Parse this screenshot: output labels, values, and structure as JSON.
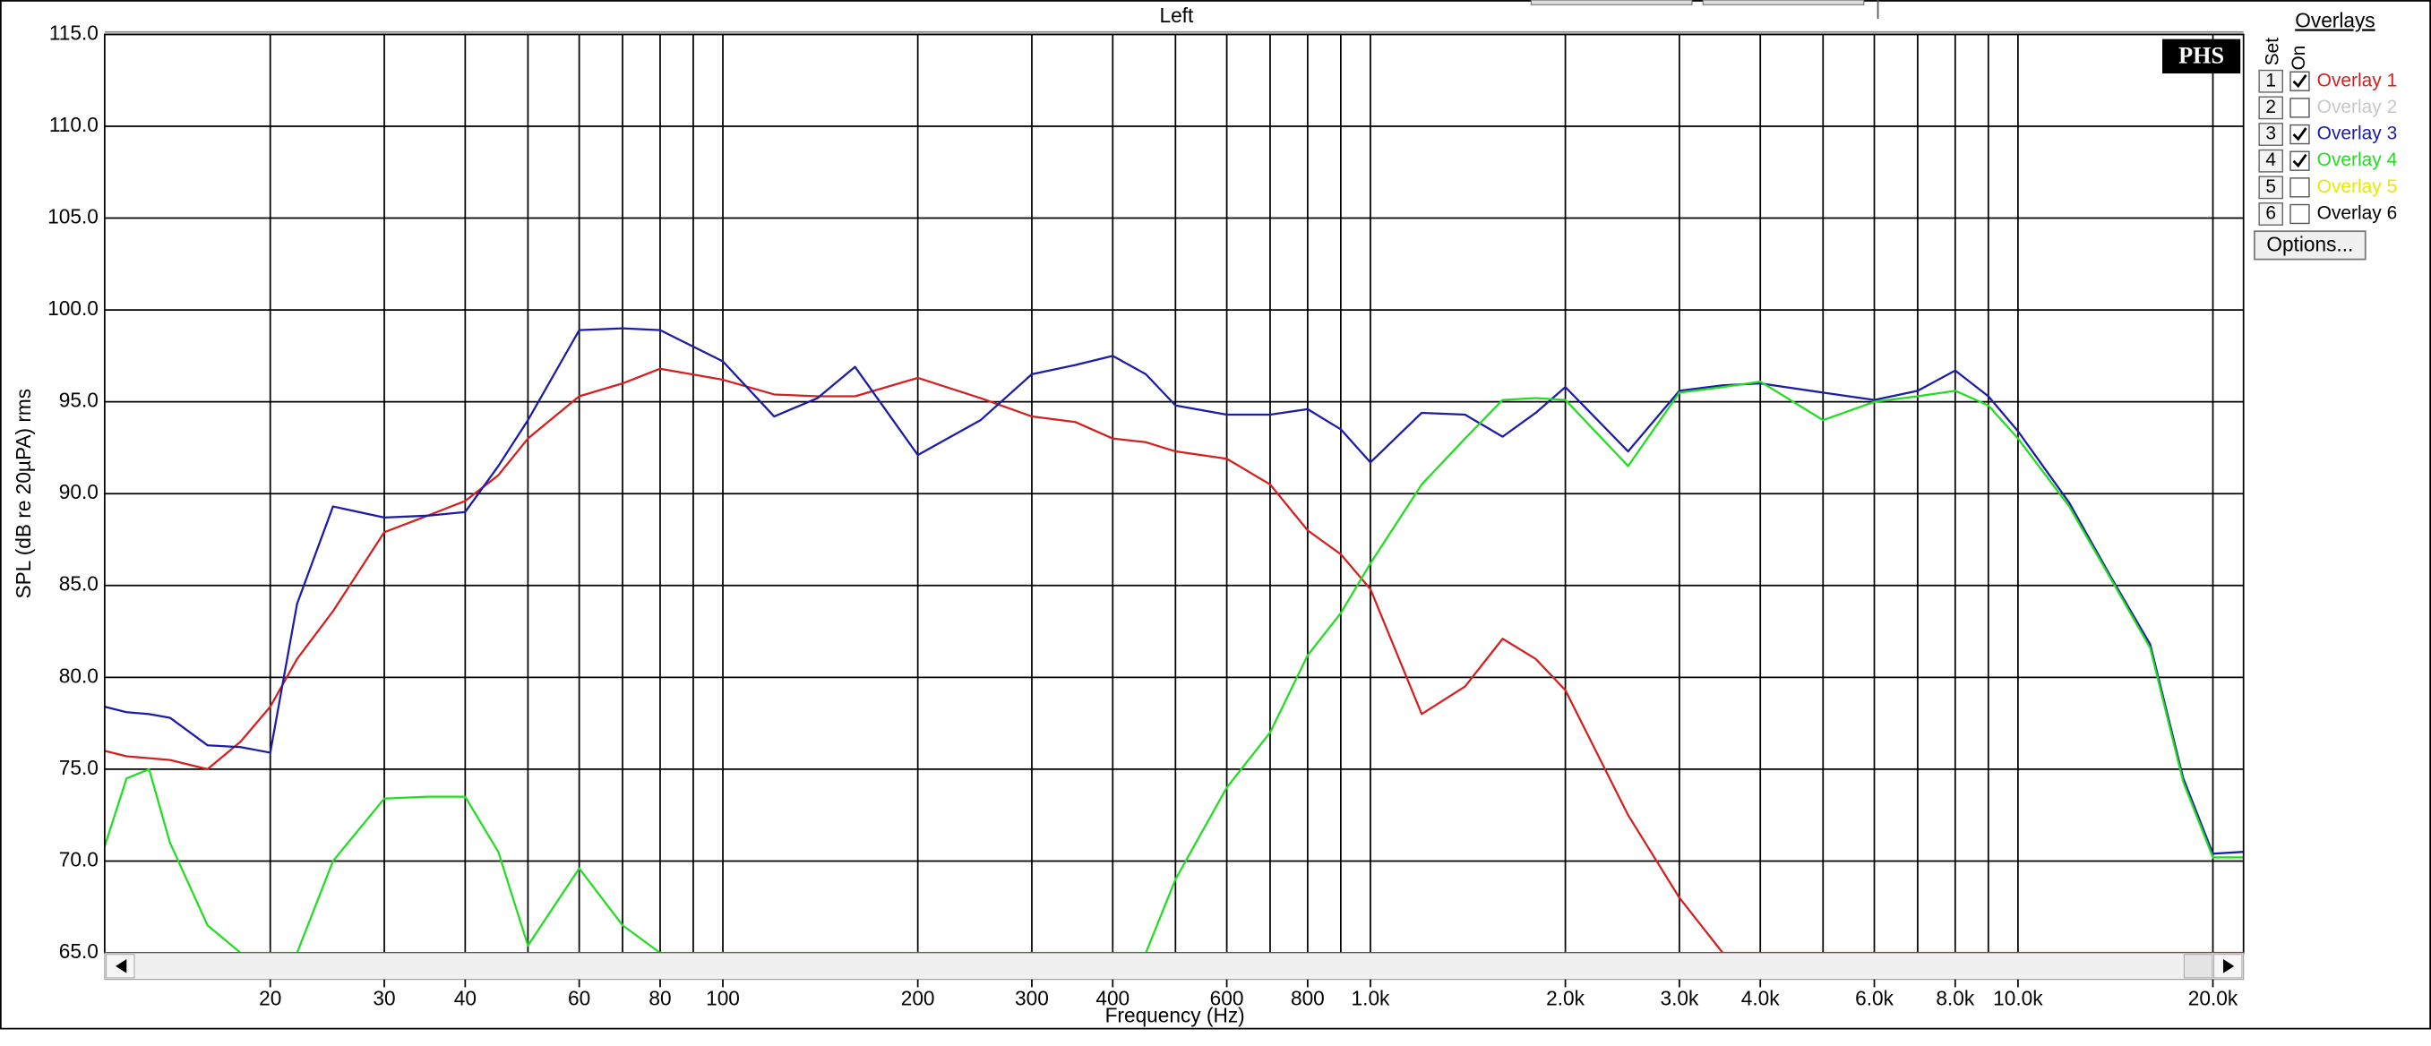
{
  "chart_data": {
    "type": "line",
    "title": "Left",
    "xlabel": "Frequency (Hz)",
    "ylabel": "SPL (dB re 20µPA) rms",
    "xscale": "log",
    "grid": true,
    "xlim": [
      11.1,
      22300
    ],
    "ylim": [
      65,
      115
    ],
    "xticks": [
      20,
      30,
      40,
      60,
      80,
      100,
      200,
      300,
      400,
      600,
      800,
      {
        "value": 1000,
        "label": "1.0k"
      },
      {
        "value": 2000,
        "label": "2.0k"
      },
      {
        "value": 3000,
        "label": "3.0k"
      },
      {
        "value": 4000,
        "label": "4.0k"
      },
      {
        "value": 6000,
        "label": "6.0k"
      },
      {
        "value": 8000,
        "label": "8.0k"
      },
      {
        "value": 10000,
        "label": "10.0k"
      },
      {
        "value": 20000,
        "label": "20.0k"
      }
    ],
    "xminor": [
      50,
      70,
      90,
      500,
      700,
      900,
      5000,
      7000,
      9000
    ],
    "yticks": [
      {
        "value": 65,
        "label": "65.0"
      },
      {
        "value": 70,
        "label": "70.0"
      },
      {
        "value": 75,
        "label": "75.0"
      },
      {
        "value": 80,
        "label": "80.0"
      },
      {
        "value": 85,
        "label": "85.0"
      },
      {
        "value": 90,
        "label": "90.0"
      },
      {
        "value": 95,
        "label": "95.0"
      },
      {
        "value": 100,
        "label": "100.0"
      },
      {
        "value": 105,
        "label": "105.0"
      },
      {
        "value": 110,
        "label": "110.0"
      },
      {
        "value": 115,
        "label": "115.0"
      }
    ],
    "x": [
      11.1,
      12,
      13,
      14,
      16,
      18,
      20,
      22,
      25,
      30,
      35,
      40,
      45,
      50,
      60,
      70,
      80,
      100,
      120,
      140,
      160,
      200,
      250,
      300,
      350,
      400,
      450,
      500,
      600,
      700,
      800,
      900,
      1000,
      1200,
      1400,
      1600,
      1800,
      2000,
      2500,
      3000,
      3500,
      4000,
      5000,
      6000,
      7000,
      8000,
      9000,
      10000,
      12000,
      14000,
      16000,
      18000,
      20000,
      22300
    ],
    "series": [
      {
        "name": "Overlay 1",
        "color": "#d42020",
        "values": [
          76.0,
          75.7,
          75.6,
          75.5,
          75.0,
          76.5,
          78.4,
          81.0,
          83.6,
          87.9,
          88.8,
          89.6,
          91.0,
          93.0,
          95.3,
          96.0,
          96.8,
          96.2,
          95.4,
          95.3,
          95.3,
          96.3,
          95.2,
          94.2,
          93.9,
          93.0,
          92.8,
          92.3,
          91.9,
          90.5,
          88.0,
          86.7,
          84.8,
          78.0,
          79.5,
          82.1,
          81.0,
          79.3,
          72.5,
          68.0,
          65,
          65,
          65,
          65,
          65,
          65,
          65,
          65,
          65,
          65,
          65,
          65,
          65,
          65
        ]
      },
      {
        "name": "Overlay 3",
        "color": "#1c1ca8",
        "values": [
          78.4,
          78.1,
          78.0,
          77.8,
          76.3,
          76.2,
          75.9,
          84.0,
          89.3,
          88.7,
          88.8,
          89.0,
          91.5,
          94.0,
          98.9,
          99.0,
          98.9,
          97.2,
          94.2,
          95.2,
          96.9,
          92.1,
          94.0,
          96.5,
          97.0,
          97.5,
          96.5,
          94.8,
          94.3,
          94.3,
          94.6,
          93.5,
          91.7,
          94.4,
          94.3,
          93.1,
          94.4,
          95.8,
          92.3,
          95.6,
          95.9,
          96.0,
          95.5,
          95.1,
          95.6,
          96.7,
          95.3,
          93.4,
          89.5,
          85.3,
          81.8,
          74.5,
          70.4,
          70.5
        ]
      },
      {
        "name": "Overlay 4",
        "color": "#22dd22",
        "values": [
          70.8,
          74.5,
          75.0,
          71.0,
          66.5,
          65,
          65,
          65,
          70.0,
          73.4,
          73.5,
          73.5,
          70.5,
          65.4,
          69.6,
          66.5,
          65,
          65,
          65,
          65,
          65,
          65,
          65,
          65,
          65,
          65,
          65,
          69.0,
          74.0,
          77.0,
          81.2,
          83.5,
          86.2,
          90.5,
          93.0,
          95.1,
          95.2,
          95.1,
          91.5,
          95.5,
          95.8,
          96.1,
          94.0,
          95.0,
          95.3,
          95.6,
          94.8,
          93.0,
          89.3,
          85.2,
          81.6,
          74.3,
          70.2,
          70.2
        ]
      }
    ]
  },
  "overlays": {
    "title": "Overlays",
    "set_label": "Set",
    "on_label": "On",
    "items": [
      {
        "number": "1",
        "on": true
      },
      {
        "number": "2",
        "label": "Overlay 2",
        "color": "#c8c8c8",
        "on": false
      },
      {
        "number": "3",
        "on": true
      },
      {
        "number": "4",
        "on": true
      },
      {
        "number": "5",
        "label": "Overlay 5",
        "color": "#e8e800",
        "on": false
      },
      {
        "number": "6",
        "label": "Overlay 6",
        "color": "#000000",
        "on": false
      }
    ],
    "button": "Options..."
  },
  "logo": "PHS"
}
